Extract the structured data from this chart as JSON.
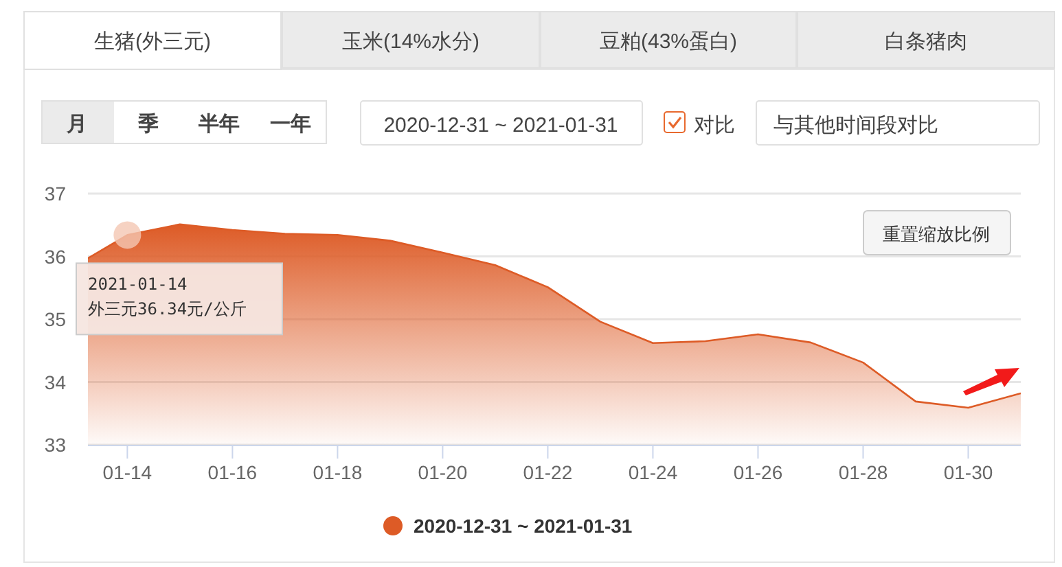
{
  "chart_data": {
    "type": "area",
    "x": [
      "2021-01-13T06:00",
      "2021-01-14",
      "2021-01-15",
      "2021-01-16",
      "2021-01-17",
      "2021-01-18",
      "2021-01-19",
      "2021-01-20",
      "2021-01-21",
      "2021-01-22",
      "2021-01-23",
      "2021-01-24",
      "2021-01-25",
      "2021-01-26",
      "2021-01-27",
      "2021-01-28",
      "2021-01-29",
      "2021-01-30",
      "2021-01-31"
    ],
    "series": [
      {
        "name": "2020-12-31 ~ 2021-01-31",
        "color": "#dd5b26",
        "values": [
          35.97,
          36.34,
          36.51,
          36.42,
          36.36,
          36.34,
          36.25,
          36.06,
          35.86,
          35.51,
          34.96,
          34.62,
          34.65,
          34.76,
          34.63,
          34.31,
          33.69,
          33.59,
          33.82
        ]
      }
    ],
    "xlim": [
      "2021-01-13T06:00",
      "2021-01-31T00:00"
    ],
    "xticks": [
      {
        "value": "2021-01-14",
        "label": "01-14"
      },
      {
        "value": "2021-01-16",
        "label": "01-16"
      },
      {
        "value": "2021-01-18",
        "label": "01-18"
      },
      {
        "value": "2021-01-20",
        "label": "01-20"
      },
      {
        "value": "2021-01-22",
        "label": "01-22"
      },
      {
        "value": "2021-01-24",
        "label": "01-24"
      },
      {
        "value": "2021-01-26",
        "label": "01-26"
      },
      {
        "value": "2021-01-28",
        "label": "01-28"
      },
      {
        "value": "2021-01-30",
        "label": "01-30"
      }
    ],
    "ylim": [
      33,
      37
    ],
    "yticks": [
      33,
      34,
      35,
      36,
      37
    ],
    "grid": "y",
    "legend": "bottom",
    "annotations": [
      "生猪(外三元)",
      "玉米(14%水分)",
      "豆粕(43%蛋白)",
      "白条猪肉",
      "月",
      "季",
      "半年",
      "一年",
      "2020-12-31 ~ 2021-01-31",
      "对比",
      "与其他时间段对比",
      "重置缩放比例",
      {
        "text": "2021-01-14\n外三元36.34元/公斤",
        "x": "2021-01-14",
        "y": 36.34
      }
    ]
  }
}
